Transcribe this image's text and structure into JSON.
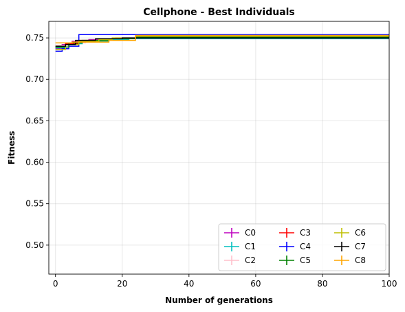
{
  "chart_data": {
    "type": "line",
    "title": "Cellphone - Best Individuals",
    "xlabel": "Number of generations",
    "ylabel": "Fitness",
    "xlim": [
      -2,
      100
    ],
    "ylim": [
      0.465,
      0.77
    ],
    "x_ticks": [
      0,
      20,
      40,
      60,
      80,
      100
    ],
    "y_ticks": [
      0.5,
      0.55,
      0.6,
      0.65,
      0.7,
      0.75
    ],
    "grid": true,
    "legend_position": "lower-right",
    "legend_columns": 3,
    "series": [
      {
        "name": "C0",
        "color": "#bf00bf",
        "points": [
          [
            0,
            0.737
          ],
          [
            2,
            0.742
          ],
          [
            5,
            0.746
          ],
          [
            10,
            0.748
          ],
          [
            18,
            0.75
          ],
          [
            100,
            0.75
          ]
        ]
      },
      {
        "name": "C1",
        "color": "#00bfbf",
        "points": [
          [
            0,
            0.738
          ],
          [
            3,
            0.743
          ],
          [
            8,
            0.746
          ],
          [
            16,
            0.748
          ],
          [
            22,
            0.749
          ],
          [
            100,
            0.749
          ]
        ]
      },
      {
        "name": "C2",
        "color": "#ffc0cb",
        "points": [
          [
            0,
            0.741
          ],
          [
            4,
            0.744
          ],
          [
            9,
            0.747
          ],
          [
            16,
            0.749
          ],
          [
            24,
            0.752
          ],
          [
            100,
            0.752
          ]
        ]
      },
      {
        "name": "C3",
        "color": "#ff0000",
        "points": [
          [
            0,
            0.739
          ],
          [
            3,
            0.743
          ],
          [
            7,
            0.747
          ],
          [
            14,
            0.749
          ],
          [
            24,
            0.753
          ],
          [
            100,
            0.753
          ]
        ]
      },
      {
        "name": "C4",
        "color": "#0000ff",
        "points": [
          [
            0,
            0.734
          ],
          [
            2,
            0.737
          ],
          [
            4,
            0.74
          ],
          [
            6,
            0.74
          ],
          [
            7,
            0.754
          ],
          [
            25,
            0.754
          ],
          [
            100,
            0.754
          ]
        ]
      },
      {
        "name": "C5",
        "color": "#008000",
        "points": [
          [
            0,
            0.739
          ],
          [
            4,
            0.744
          ],
          [
            8,
            0.747
          ],
          [
            16,
            0.749
          ],
          [
            24,
            0.751
          ],
          [
            100,
            0.751
          ]
        ]
      },
      {
        "name": "C6",
        "color": "#bfbf00",
        "points": [
          [
            0,
            0.736
          ],
          [
            3,
            0.742
          ],
          [
            7,
            0.746
          ],
          [
            13,
            0.748
          ],
          [
            17,
            0.75
          ],
          [
            24,
            0.752
          ],
          [
            100,
            0.752
          ]
        ]
      },
      {
        "name": "C7",
        "color": "#000000",
        "points": [
          [
            0,
            0.74
          ],
          [
            3,
            0.742
          ],
          [
            6,
            0.747
          ],
          [
            12,
            0.749
          ],
          [
            20,
            0.75
          ],
          [
            100,
            0.75
          ]
        ]
      },
      {
        "name": "C8",
        "color": "#ffa500",
        "points": [
          [
            0,
            0.744
          ],
          [
            5,
            0.745
          ],
          [
            9,
            0.745
          ],
          [
            16,
            0.747
          ],
          [
            24,
            0.753
          ],
          [
            100,
            0.753
          ]
        ]
      }
    ]
  }
}
